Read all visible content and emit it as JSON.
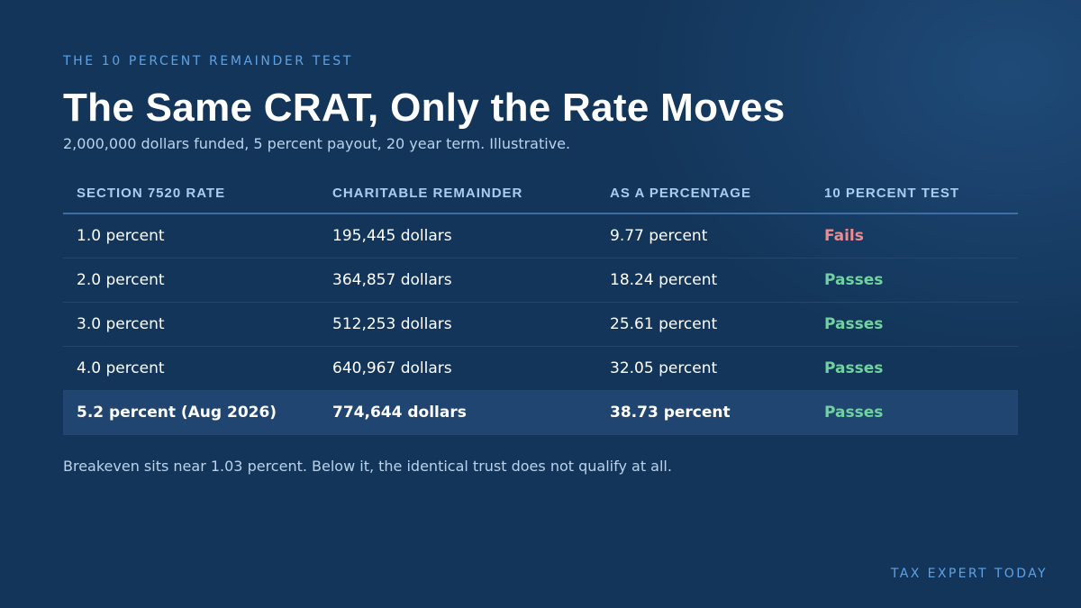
{
  "eyebrow": "THE 10 PERCENT REMAINDER TEST",
  "title": "The Same CRAT, Only the Rate Moves",
  "subtitle": "2,000,000 dollars funded, 5 percent payout, 20 year term. Illustrative.",
  "table": {
    "headers": [
      "SECTION 7520 RATE",
      "CHARITABLE REMAINDER",
      "AS A PERCENTAGE",
      "10 PERCENT TEST"
    ],
    "rows": [
      {
        "rate": "1.0 percent",
        "remainder": "195,445 dollars",
        "percentage": "9.77 percent",
        "test": "Fails"
      },
      {
        "rate": "2.0 percent",
        "remainder": "364,857 dollars",
        "percentage": "18.24 percent",
        "test": "Passes"
      },
      {
        "rate": "3.0 percent",
        "remainder": "512,253 dollars",
        "percentage": "25.61 percent",
        "test": "Passes"
      },
      {
        "rate": "4.0 percent",
        "remainder": "640,967 dollars",
        "percentage": "32.05 percent",
        "test": "Passes"
      },
      {
        "rate": "5.2 percent (Aug 2026)",
        "remainder": "774,644 dollars",
        "percentage": "38.73 percent",
        "test": "Passes"
      }
    ]
  },
  "footnote": "Breakeven sits near 1.03 percent. Below it, the identical trust does not qualify at all.",
  "brand": "TAX EXPERT TODAY",
  "colors": {
    "background": "#133559",
    "accent": "#5ea2e6",
    "fails": "#f08a8e",
    "passes": "#6fd2a0",
    "highlight_row": "#1f4570"
  }
}
